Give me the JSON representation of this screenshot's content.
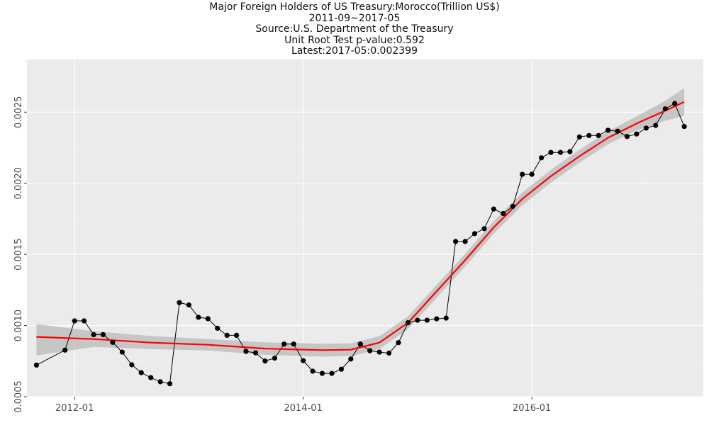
{
  "titles": {
    "line1": "Major Foreign Holders of US Treasury:Morocco(Trillion US$)",
    "line2": "2011-09~2017-05",
    "line3": "Source:U.S. Department of the Treasury",
    "line4": "Unit Root Test p-value:0.592",
    "line5": "Latest:2017-05:0.002399"
  },
  "chart_data": {
    "type": "line",
    "title": "Major Foreign Holders of US Treasury:Morocco(Trillion US$)",
    "xlabel": "",
    "ylabel": "",
    "x_ticks": [
      "2012-01",
      "2014-01",
      "2016-01"
    ],
    "y_ticks": [
      "0.0005",
      "0.0010",
      "0.0015",
      "0.0020",
      "0.0025"
    ],
    "xlim": [
      "2011-08",
      "2017-07"
    ],
    "ylim": [
      0.0005,
      0.00287
    ],
    "grid": true,
    "series": [
      {
        "role": "observed",
        "color": "#000000",
        "x": [
          "2011-09",
          "2011-12",
          "2012-01",
          "2012-02",
          "2012-03",
          "2012-04",
          "2012-05",
          "2012-06",
          "2012-07",
          "2012-08",
          "2012-09",
          "2012-10",
          "2012-11",
          "2012-12",
          "2013-01",
          "2013-02",
          "2013-03",
          "2013-04",
          "2013-05",
          "2013-06",
          "2013-07",
          "2013-08",
          "2013-09",
          "2013-10",
          "2013-11",
          "2013-12",
          "2014-01",
          "2014-02",
          "2014-03",
          "2014-04",
          "2014-05",
          "2014-06",
          "2014-07",
          "2014-08",
          "2014-09",
          "2014-10",
          "2014-11",
          "2014-12",
          "2015-01",
          "2015-02",
          "2015-03",
          "2015-04",
          "2015-05",
          "2015-06",
          "2015-07",
          "2015-08",
          "2015-09",
          "2015-10",
          "2015-11",
          "2015-12",
          "2016-01",
          "2016-02",
          "2016-03",
          "2016-04",
          "2016-05",
          "2016-06",
          "2016-07",
          "2016-08",
          "2016-09",
          "2016-10",
          "2016-11",
          "2016-12",
          "2017-01",
          "2017-02",
          "2017-03",
          "2017-04",
          "2017-05"
        ],
        "values": [
          0.000722,
          0.000827,
          0.001033,
          0.001033,
          0.000936,
          0.000936,
          0.000882,
          0.000813,
          0.000724,
          0.000669,
          0.000634,
          0.000605,
          0.000591,
          0.001161,
          0.001145,
          0.001058,
          0.001048,
          0.000981,
          0.000931,
          0.000931,
          0.000818,
          0.000808,
          0.000751,
          0.000771,
          0.00087,
          0.00087,
          0.000753,
          0.000679,
          0.000664,
          0.000664,
          0.000693,
          0.000765,
          0.00087,
          0.000823,
          0.000813,
          0.000806,
          0.00088,
          0.00102,
          0.001037,
          0.001037,
          0.001047,
          0.001052,
          0.001591,
          0.001591,
          0.001646,
          0.001681,
          0.001819,
          0.001787,
          0.001838,
          0.002063,
          0.002063,
          0.002179,
          0.002217,
          0.002217,
          0.002222,
          0.002326,
          0.002336,
          0.002336,
          0.002373,
          0.002366,
          0.002329,
          0.002346,
          0.002388,
          0.002407,
          0.002523,
          0.002561,
          0.002399
        ]
      },
      {
        "role": "loess smooth",
        "color": "#ff0000",
        "x": [
          "2011-09",
          "2012-03",
          "2012-09",
          "2013-03",
          "2013-09",
          "2014-03",
          "2014-06",
          "2014-09",
          "2014-12",
          "2015-03",
          "2015-06",
          "2015-09",
          "2015-12",
          "2016-03",
          "2016-06",
          "2016-09",
          "2016-12",
          "2017-03",
          "2017-05"
        ],
        "values": [
          0.00092,
          0.000905,
          0.00088,
          0.000865,
          0.000838,
          0.000827,
          0.00083,
          0.00088,
          0.00102,
          0.00124,
          0.00146,
          0.00169,
          0.00189,
          0.00205,
          0.00219,
          0.00232,
          0.00242,
          0.00251,
          0.002572
        ]
      }
    ],
    "confidence_band": {
      "color": "#bfbfbf",
      "x": [
        "2011-09",
        "2012-03",
        "2012-09",
        "2013-03",
        "2013-09",
        "2014-03",
        "2014-06",
        "2014-09",
        "2014-12",
        "2015-03",
        "2015-06",
        "2015-09",
        "2015-12",
        "2016-03",
        "2016-06",
        "2016-09",
        "2016-12",
        "2017-03",
        "2017-05"
      ],
      "upper": [
        0.00101,
        0.00096,
        0.000926,
        0.000905,
        0.000882,
        0.000872,
        0.000875,
        0.000925,
        0.001065,
        0.001285,
        0.001505,
        0.001735,
        0.001935,
        0.002095,
        0.002235,
        0.002365,
        0.00247,
        0.00258,
        0.00267
      ],
      "lower": [
        0.00079,
        0.00085,
        0.000834,
        0.000825,
        0.000794,
        0.000782,
        0.000785,
        0.000835,
        0.000975,
        0.001195,
        0.001415,
        0.001645,
        0.001845,
        0.002005,
        0.002145,
        0.002275,
        0.00237,
        0.00244,
        0.002474
      ]
    }
  }
}
